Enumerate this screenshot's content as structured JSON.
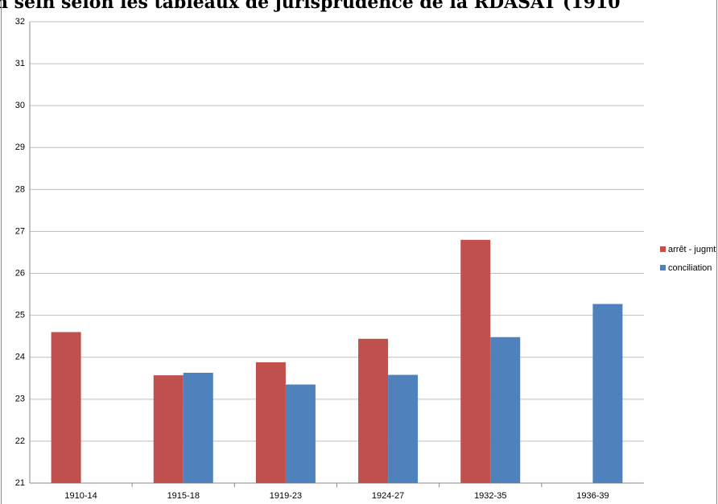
{
  "chart_data": {
    "type": "bar",
    "title": "n sein selon les tableaux de jurisprudence de la RDASAT (1910",
    "categories": [
      "1910-14",
      "1915-18",
      "1919-23",
      "1924-27",
      "1932-35",
      "1936-39"
    ],
    "series": [
      {
        "name": "arrêt - jugmt",
        "color": "#c0504d",
        "values": [
          24.6,
          23.57,
          23.88,
          24.44,
          26.8,
          null
        ]
      },
      {
        "name": "conciliation",
        "color": "#4f81bd",
        "values": [
          null,
          23.63,
          23.35,
          23.58,
          24.48,
          25.27
        ]
      }
    ],
    "ylim": [
      21,
      32
    ],
    "yticks": [
      21,
      22,
      23,
      24,
      25,
      26,
      27,
      28,
      29,
      30,
      31,
      32
    ],
    "grid": true,
    "legend": "right"
  }
}
